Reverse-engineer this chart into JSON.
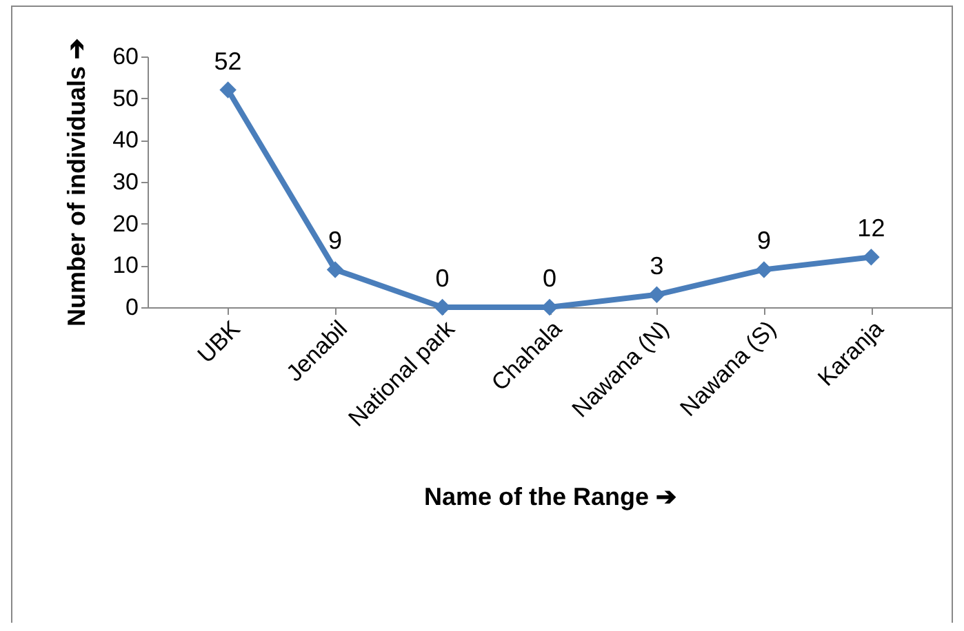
{
  "chart_data": {
    "type": "line",
    "xlabel": "Name of the Range ➔",
    "ylabel": "Number of individuals ➔",
    "categories": [
      "UBK",
      "Jenabil",
      "National park",
      "Chahala",
      "Nawana (N)",
      "Nawana (S)",
      "Karanja"
    ],
    "series": [
      {
        "color": "#4a7ebb",
        "values": [
          52,
          9,
          0,
          0,
          3,
          9,
          12
        ]
      }
    ],
    "ylim": [
      0,
      60
    ],
    "yticks": [
      0,
      10,
      20,
      30,
      40,
      50,
      60
    ],
    "data_labels": true,
    "marker": "diamond",
    "grid": false,
    "line_style": "solid"
  }
}
